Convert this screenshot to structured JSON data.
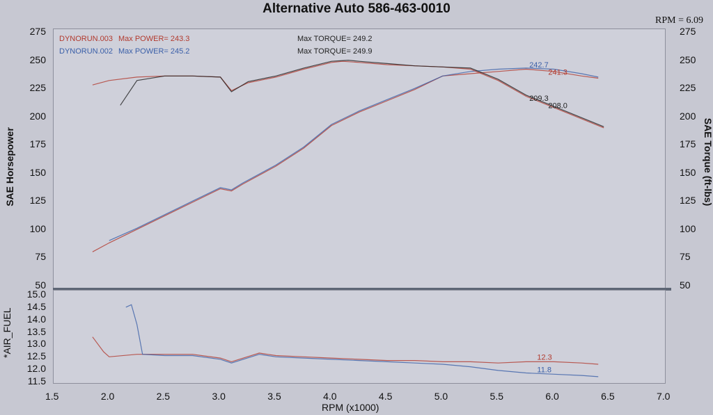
{
  "title": "Alternative Auto 586-463-0010",
  "rpm_readout": "RPM = 6.09",
  "legend": {
    "run3": {
      "file": "DYNORUN.003",
      "power": "Max POWER= 243.3",
      "torque": "Max TORQUE= 249.2",
      "color": "#b23a2e"
    },
    "run2": {
      "file": "DYNORUN.002",
      "power": "Max POWER= 245.2",
      "torque": "Max TORQUE= 249.9",
      "color": "#3a5fa8"
    }
  },
  "axis_labels": {
    "left": "SAE Horsepower",
    "right": "SAE Torque (ft-lbs)",
    "x": "RPM (x1000)",
    "af": "*AIR_FUEL"
  },
  "colors": {
    "run3": "#b23a2e",
    "run2": "#3a5fa8",
    "black": "#222222"
  },
  "chart_data": [
    {
      "type": "line",
      "title": "",
      "xlabel": "RPM (x1000)",
      "ylabel": "SAE Horsepower",
      "y2label": "SAE Torque (ft-lbs)",
      "xlim": [
        1.5,
        7.0
      ],
      "ylim": [
        50,
        275
      ],
      "xticks": [
        "1.5",
        "2.0",
        "2.5",
        "3.0",
        "3.5",
        "4.0",
        "4.5",
        "5.0",
        "5.5",
        "6.0",
        "6.5",
        "7.0"
      ],
      "yticks": [
        "275",
        "250",
        "225",
        "200",
        "175",
        "150",
        "125",
        "100",
        "75",
        "50"
      ],
      "annotations": [
        {
          "text": "242.7",
          "x": 5.78,
          "y": 243.5,
          "color": "#3a5fa8"
        },
        {
          "text": "241.3",
          "x": 5.95,
          "y": 237,
          "color": "#b23a2e"
        },
        {
          "text": "209.3",
          "x": 5.78,
          "y": 214,
          "color": "#222222"
        },
        {
          "text": "208.0",
          "x": 5.95,
          "y": 207.5,
          "color": "#222222"
        }
      ],
      "series": [
        {
          "name": "DYNORUN.003",
          "color": "#b23a2e",
          "x": [
            1.85,
            2.0,
            2.25,
            2.5,
            2.75,
            3.0,
            3.1,
            3.2,
            3.5,
            3.75,
            4.0,
            4.25,
            4.5,
            4.75,
            5.0,
            5.25,
            5.5,
            5.75,
            6.0,
            6.25,
            6.4
          ],
          "y": [
            80,
            88,
            100,
            112,
            124,
            136,
            134,
            140,
            156,
            172,
            192,
            204,
            214,
            224,
            236,
            238,
            240,
            242,
            240,
            236,
            234
          ]
        },
        {
          "name": "DYNORUN.002",
          "color": "#3a5fa8",
          "x": [
            2.0,
            2.25,
            2.5,
            2.75,
            3.0,
            3.1,
            3.2,
            3.5,
            3.75,
            4.0,
            4.25,
            4.5,
            4.75,
            5.0,
            5.25,
            5.5,
            5.75,
            6.0,
            6.25,
            6.4
          ],
          "y": [
            90,
            101,
            113,
            125,
            137,
            135,
            141,
            157,
            173,
            193,
            205,
            215,
            225,
            236,
            240,
            242,
            243,
            242,
            238,
            235
          ]
        },
        {
          "name": "",
          "color": "#b23a2e",
          "x": [
            1.85,
            2.0,
            2.25,
            2.5,
            2.75,
            3.0,
            3.1,
            3.25,
            3.5,
            3.75,
            4.0,
            4.1,
            4.25,
            4.5,
            4.75,
            5.0,
            5.25,
            5.5,
            5.75,
            6.0,
            6.25,
            6.45
          ],
          "y": [
            228,
            232,
            235,
            236,
            236,
            235,
            223,
            230,
            235,
            242,
            248,
            249,
            248,
            246,
            245,
            244,
            242,
            232,
            218,
            208,
            198,
            190
          ]
        },
        {
          "name": "",
          "color": "#222222",
          "x": [
            2.1,
            2.25,
            2.5,
            2.75,
            3.0,
            3.1,
            3.25,
            3.5,
            3.75,
            4.0,
            4.15,
            4.25,
            4.5,
            4.75,
            5.0,
            5.25,
            5.5,
            5.75,
            6.0,
            6.25,
            6.45
          ],
          "y": [
            210,
            232,
            236,
            236,
            235,
            222,
            231,
            236,
            243,
            249,
            250,
            249,
            247,
            245,
            244,
            243,
            233,
            219,
            209,
            199,
            191
          ]
        }
      ]
    },
    {
      "type": "line",
      "title": "",
      "xlabel": "RPM (x1000)",
      "ylabel": "*AIR_FUEL",
      "xlim": [
        1.5,
        7.0
      ],
      "ylim": [
        11.5,
        15.0
      ],
      "yticks": [
        "15.0",
        "14.5",
        "14.0",
        "13.5",
        "13.0",
        "12.5",
        "12.0",
        "11.5"
      ],
      "annotations": [
        {
          "text": "12.3",
          "x": 5.85,
          "y": 12.38,
          "color": "#b23a2e"
        },
        {
          "text": "11.8",
          "x": 5.85,
          "y": 11.88,
          "color": "#3a5fa8"
        }
      ],
      "series": [
        {
          "name": "DYNORUN.003",
          "color": "#b23a2e",
          "x": [
            1.85,
            1.95,
            2.0,
            2.25,
            2.5,
            2.75,
            3.0,
            3.1,
            3.35,
            3.5,
            3.75,
            4.0,
            4.25,
            4.5,
            4.75,
            5.0,
            5.25,
            5.5,
            5.75,
            6.0,
            6.25,
            6.4
          ],
          "y": [
            13.3,
            12.7,
            12.5,
            12.6,
            12.6,
            12.6,
            12.45,
            12.3,
            12.65,
            12.55,
            12.5,
            12.45,
            12.4,
            12.35,
            12.35,
            12.3,
            12.3,
            12.25,
            12.3,
            12.3,
            12.25,
            12.2
          ]
        },
        {
          "name": "DYNORUN.002",
          "color": "#3a5fa8",
          "x": [
            2.15,
            2.2,
            2.25,
            2.3,
            2.5,
            2.75,
            3.0,
            3.1,
            3.35,
            3.5,
            3.75,
            4.0,
            4.25,
            4.5,
            4.75,
            5.0,
            5.25,
            5.5,
            5.75,
            6.0,
            6.25,
            6.4
          ],
          "y": [
            14.5,
            14.6,
            13.8,
            12.6,
            12.55,
            12.55,
            12.4,
            12.25,
            12.6,
            12.5,
            12.45,
            12.4,
            12.35,
            12.3,
            12.25,
            12.2,
            12.1,
            11.95,
            11.85,
            11.8,
            11.75,
            11.7
          ]
        }
      ]
    }
  ]
}
